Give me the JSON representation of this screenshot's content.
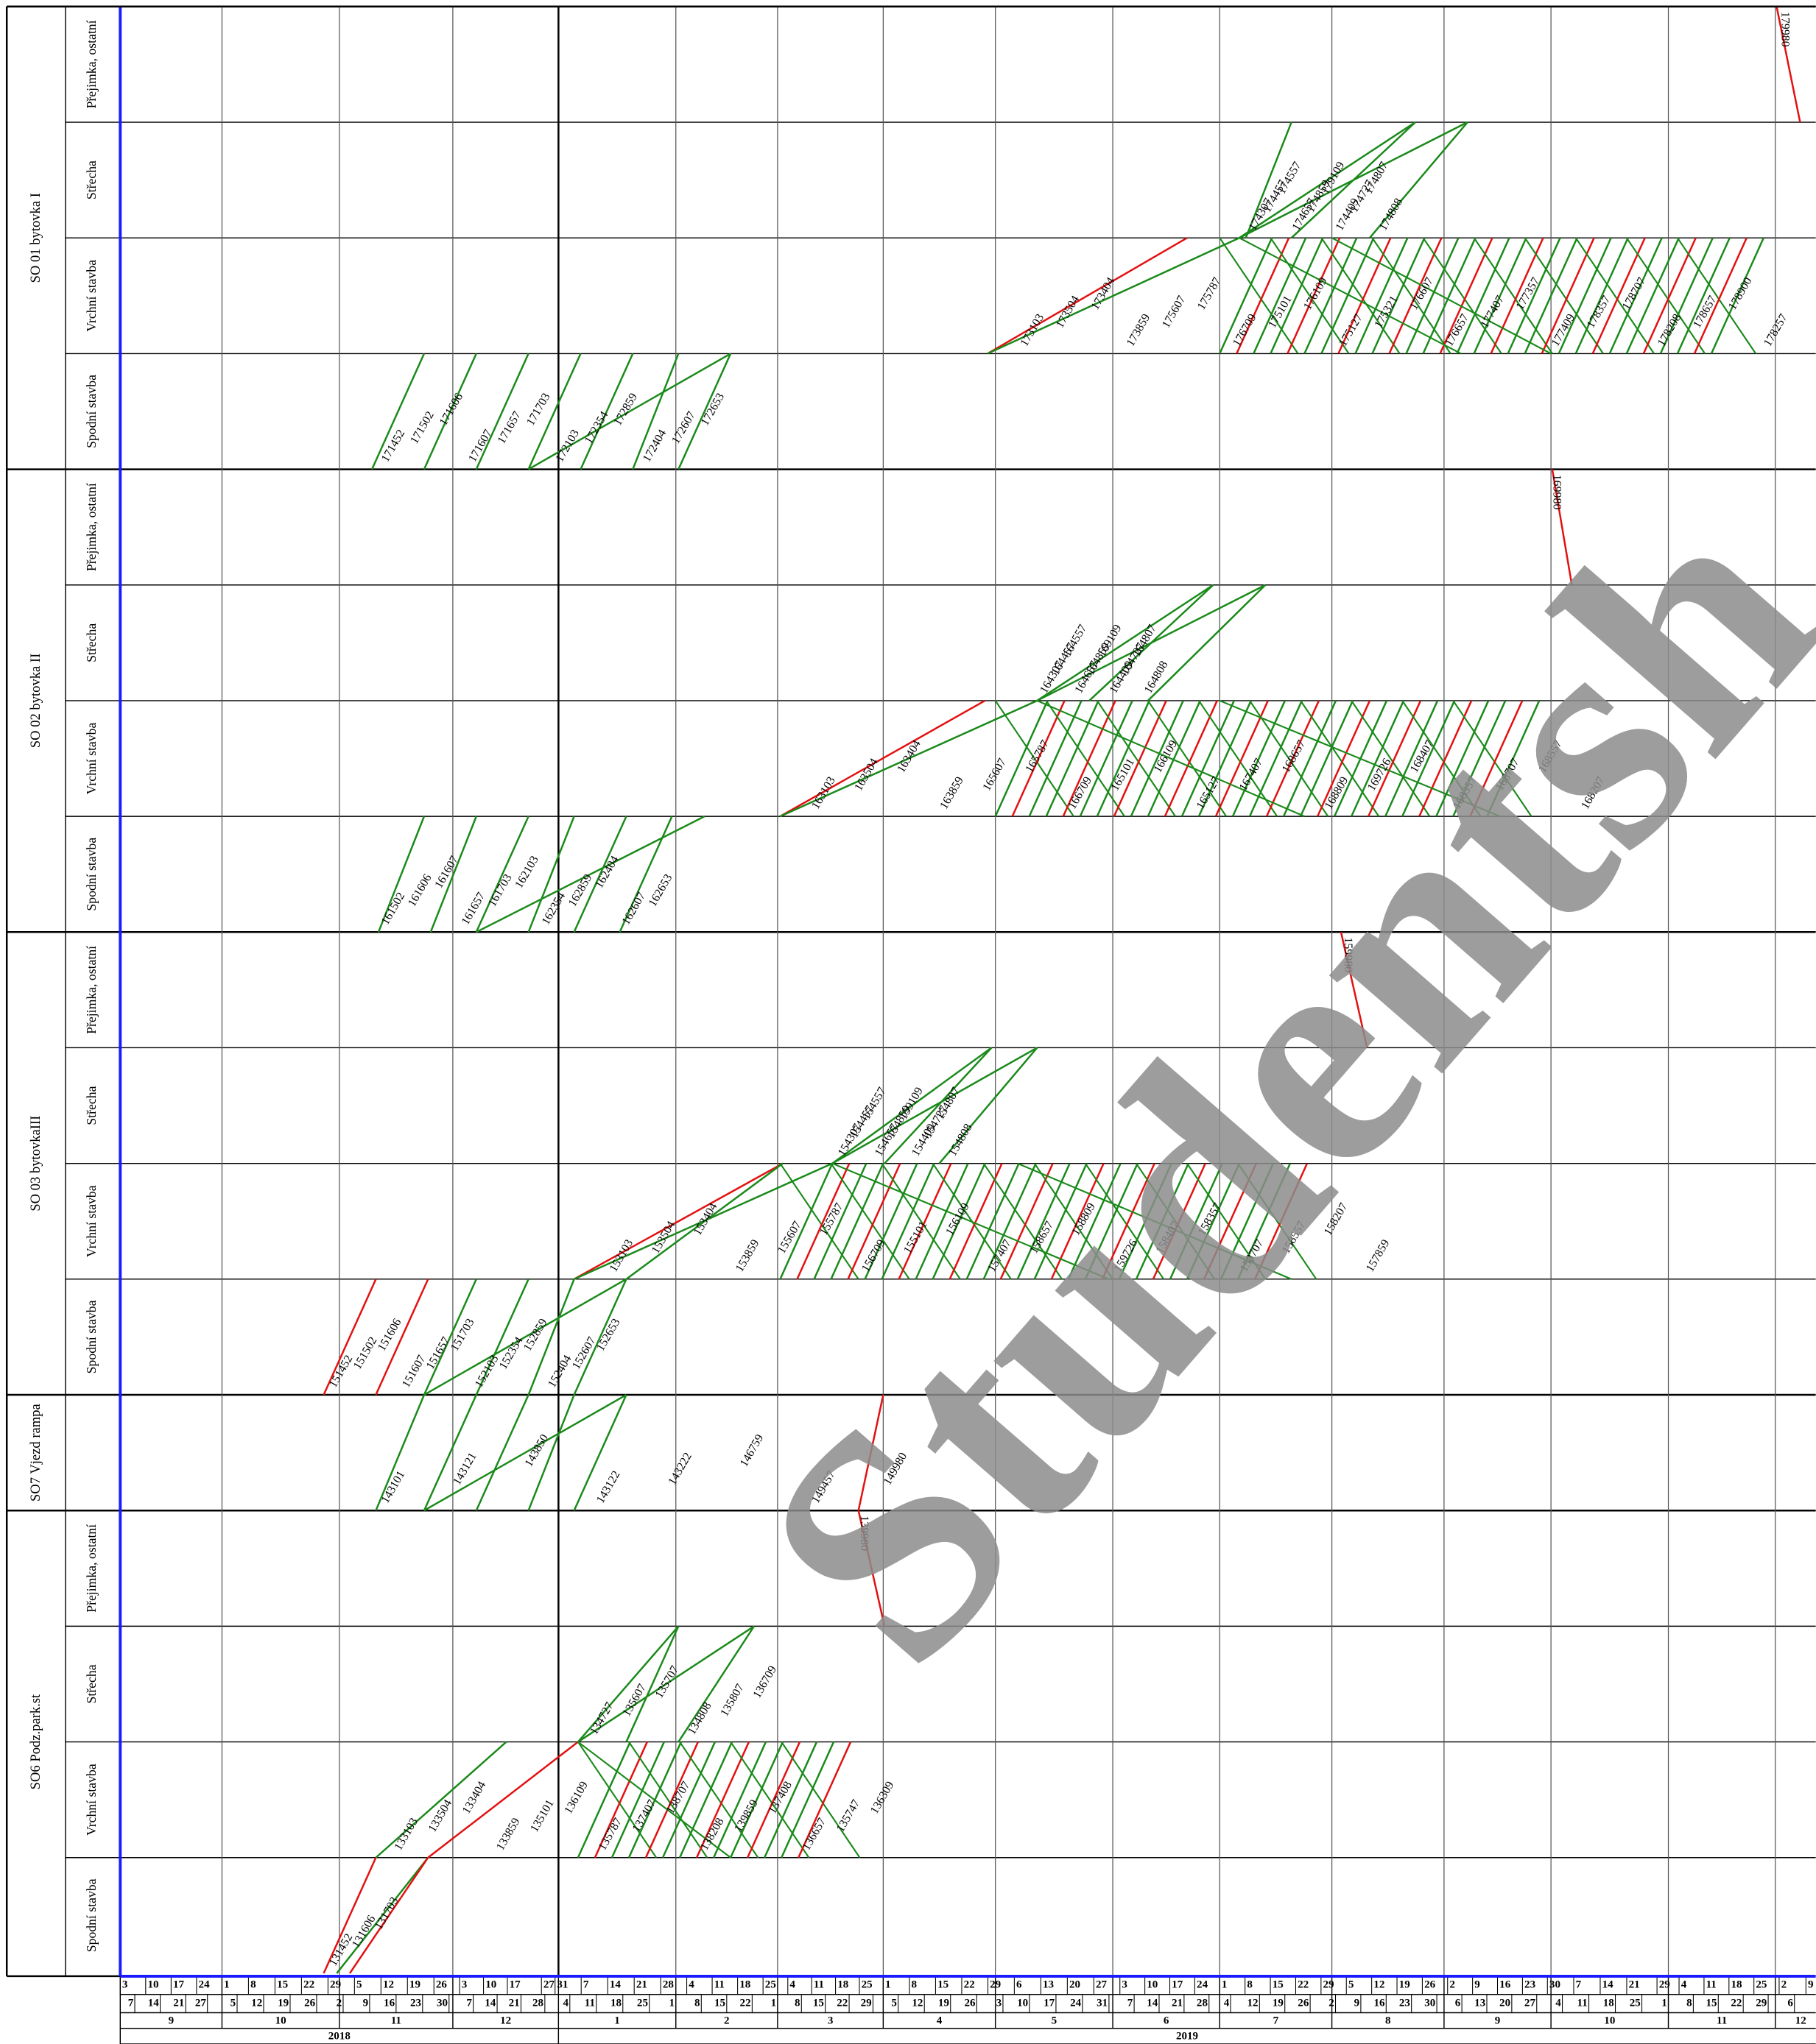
{
  "groups": [
    {
      "name": "SO 01 bytovka I",
      "rows": [
        {
          "name": "Přejimka, ostatní",
          "tasks": [
            "179980"
          ]
        },
        {
          "name": "Střecha",
          "tasks": [
            "174307",
            "174457",
            "174557",
            "174657",
            "174859",
            "179109",
            "174409",
            "174727",
            "174807",
            "174808"
          ]
        },
        {
          "name": "Vrchní stavba",
          "tasks": [
            "173103",
            "173504",
            "173404",
            "173859",
            "175607",
            "175787",
            "176709",
            "175101",
            "176109",
            "175127",
            "175321",
            "176607",
            "176657",
            "177407",
            "177357",
            "177409",
            "178357",
            "178707",
            "178208",
            "178657",
            "178900",
            "178257"
          ]
        },
        {
          "name": "Spodní stavba",
          "tasks": [
            "171452",
            "171502",
            "171606",
            "171607",
            "171657",
            "171703",
            "172103",
            "172354",
            "172859",
            "172404",
            "172607",
            "172653"
          ]
        }
      ]
    },
    {
      "name": "SO 02 bytovka II",
      "rows": [
        {
          "name": "Přejimka, ostatní",
          "tasks": [
            "169980"
          ]
        },
        {
          "name": "Střecha",
          "tasks": [
            "164307",
            "164457",
            "164557",
            "164657",
            "164859",
            "169109",
            "164409",
            "164727",
            "164807",
            "164808"
          ]
        },
        {
          "name": "Vrchní stavba",
          "tasks": [
            "163103",
            "163504",
            "163404",
            "163859",
            "165607",
            "165787",
            "166709",
            "165101",
            "166109",
            "165127",
            "167407",
            "168657",
            "168809",
            "169726",
            "168407",
            "168357",
            "168707",
            "168557",
            "168207"
          ]
        },
        {
          "name": "Spodní stavba",
          "tasks": [
            "161502",
            "161606",
            "161607",
            "161657",
            "161703",
            "162103",
            "162354",
            "162859",
            "162404",
            "162607",
            "162653"
          ]
        }
      ]
    },
    {
      "name": "SO 03 bytovkaIII",
      "rows": [
        {
          "name": "Přejimka, ostatní",
          "tasks": [
            "159980"
          ]
        },
        {
          "name": "Střecha",
          "tasks": [
            "154307",
            "154457",
            "154557",
            "154657",
            "154859",
            "159109",
            "154409",
            "154727",
            "154807",
            "154808"
          ]
        },
        {
          "name": "Vrchní stavba",
          "tasks": [
            "153103",
            "153504",
            "153404",
            "153859",
            "155607",
            "155787",
            "156709",
            "155101",
            "156109",
            "157407",
            "158657",
            "158809",
            "159726",
            "158407",
            "158357",
            "158707",
            "158557",
            "158207",
            "157859"
          ]
        },
        {
          "name": "Spodní stavba",
          "tasks": [
            "151452",
            "151502",
            "151606",
            "151607",
            "151657",
            "151703",
            "152103",
            "152354",
            "152859",
            "152404",
            "152607",
            "152653"
          ]
        }
      ]
    },
    {
      "name": "SO7 Vjezd rampa",
      "rows": [
        {
          "tasks": [
            "143101",
            "143121",
            "143850",
            "143122",
            "143222",
            "146759",
            "149457",
            "149980"
          ]
        }
      ]
    },
    {
      "name": "SO6 Podz.park.st",
      "rows": [
        {
          "name": "Přejimka, ostatní",
          "tasks": [
            "139980"
          ]
        },
        {
          "name": "Střecha",
          "tasks": [
            "134727",
            "135607",
            "135707",
            "134808",
            "135807",
            "136709"
          ]
        },
        {
          "name": "Vrchní stavba",
          "tasks": [
            "133103",
            "133504",
            "133404",
            "133859",
            "135101",
            "136109",
            "135787",
            "137407",
            "138707",
            "138208",
            "139859",
            "137408",
            "136657",
            "135747",
            "136309"
          ]
        },
        {
          "name": "Spodní stavba",
          "tasks": [
            "131452",
            "131606",
            "131703"
          ]
        }
      ]
    }
  ],
  "timeline": {
    "months": [
      {
        "month": "9",
        "top": [
          3,
          10,
          17,
          24
        ],
        "bottom": [
          7,
          14,
          21,
          27
        ]
      },
      {
        "month": "10",
        "top": [
          1,
          8,
          15,
          22,
          29
        ],
        "bottom": [
          5,
          12,
          19,
          26
        ]
      },
      {
        "month": "11",
        "top": [
          5,
          12,
          19,
          26
        ],
        "bottom": [
          2,
          9,
          16,
          23,
          30
        ]
      },
      {
        "month": "12",
        "top": [
          3,
          10,
          17,
          27,
          31
        ],
        "bottom": [
          7,
          14,
          21,
          28
        ]
      },
      {
        "month": "1",
        "top": [
          7,
          14,
          21,
          28
        ],
        "bottom": [
          4,
          11,
          18,
          25
        ]
      },
      {
        "month": "2",
        "top": [
          4,
          11,
          18,
          25
        ],
        "bottom": [
          1,
          8,
          15,
          22
        ]
      },
      {
        "month": "3",
        "top": [
          4,
          11,
          18,
          25
        ],
        "bottom": [
          1,
          8,
          15,
          22,
          29
        ]
      },
      {
        "month": "4",
        "top": [
          1,
          8,
          15,
          22,
          29
        ],
        "bottom": [
          5,
          12,
          19,
          26
        ]
      },
      {
        "month": "5",
        "top": [
          6,
          13,
          20,
          27
        ],
        "bottom": [
          3,
          10,
          17,
          24,
          31
        ]
      },
      {
        "month": "6",
        "top": [
          3,
          10,
          17,
          24
        ],
        "bottom": [
          7,
          14,
          21,
          28
        ]
      },
      {
        "month": "7",
        "top": [
          1,
          8,
          15,
          22,
          29
        ],
        "bottom": [
          4,
          12,
          19,
          26
        ]
      },
      {
        "month": "8",
        "top": [
          5,
          12,
          19,
          26
        ],
        "bottom": [
          2,
          9,
          16,
          23,
          30
        ]
      },
      {
        "month": "9",
        "top": [
          2,
          9,
          16,
          23,
          30
        ],
        "bottom": [
          6,
          13,
          20,
          27
        ]
      },
      {
        "month": "10",
        "top": [
          7,
          14,
          21,
          29
        ],
        "bottom": [
          4,
          11,
          18,
          25
        ]
      },
      {
        "month": "11",
        "top": [
          4,
          11,
          18,
          25
        ],
        "bottom": [
          1,
          8,
          15,
          22,
          29
        ]
      },
      {
        "month": "12",
        "top": [
          2,
          9
        ],
        "bottom": [
          6
        ]
      }
    ],
    "years": [
      {
        "year": "2018"
      },
      {
        "year": "2019"
      }
    ]
  },
  "watermark": "Studentsh"
}
